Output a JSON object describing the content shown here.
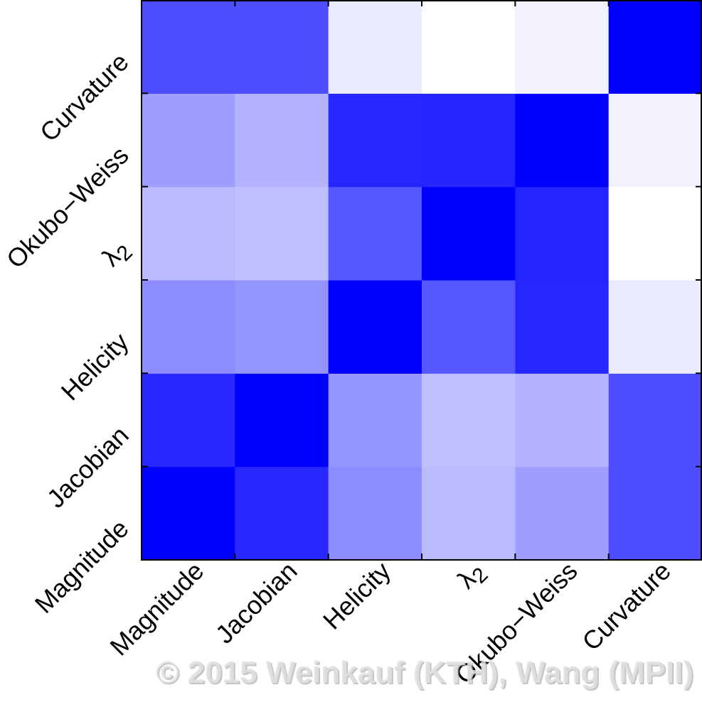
{
  "chart_data": {
    "type": "heatmap",
    "x_labels": [
      "Magnitude",
      "Jacobian",
      "Helicity",
      "λ2",
      "Okubo−Weiss",
      "Curvature"
    ],
    "y_labels": [
      "Magnitude",
      "Jacobian",
      "Helicity",
      "λ2",
      "Okubo−Weiss",
      "Curvature"
    ],
    "y_order": "bottom-to-top",
    "matrix": [
      [
        1.0,
        0.84,
        0.45,
        0.27,
        0.38,
        0.7
      ],
      [
        0.84,
        1.0,
        0.42,
        0.25,
        0.3,
        0.7
      ],
      [
        0.45,
        0.42,
        1.0,
        0.66,
        0.85,
        0.08
      ],
      [
        0.27,
        0.25,
        0.66,
        1.0,
        0.86,
        0.0
      ],
      [
        0.38,
        0.3,
        0.85,
        0.86,
        1.0,
        0.05
      ],
      [
        0.7,
        0.7,
        0.08,
        0.0,
        0.05,
        1.0
      ]
    ],
    "colorscale": {
      "low": "#ffffff",
      "high": "#0000ff"
    },
    "grid": false,
    "legend": "none"
  },
  "watermark": "© 2015 Weinkauf (KTH), Wang (MPII)"
}
